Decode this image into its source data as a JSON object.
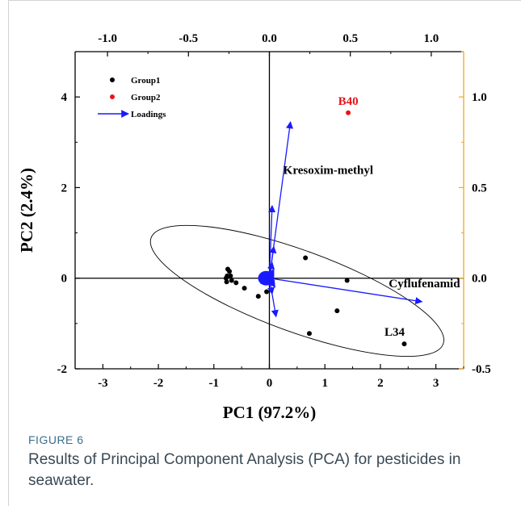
{
  "caption": {
    "label": "FIGURE 6",
    "text": "Results of Principal Component Analysis (PCA) for pesticides in seawater."
  },
  "chart_data": {
    "type": "scatter",
    "xlabel": "PC1 (97.2%)",
    "ylabel": "PC2 (2.4%)",
    "xlim": [
      -3.5,
      3.5
    ],
    "ylim": [
      -2.0,
      5.0
    ],
    "x_ticks": [
      -3,
      -2,
      -1,
      0,
      1,
      2,
      3
    ],
    "y_ticks": [
      -2,
      0,
      2,
      4
    ],
    "top_axis": {
      "lim": [
        -1.2,
        1.2
      ],
      "ticks": [
        -1.0,
        -0.5,
        0.0,
        0.5,
        1.0
      ],
      "tick_labels": [
        "-1.0",
        "-0.5",
        "0.0",
        "0.5",
        "1.0"
      ]
    },
    "right_axis": {
      "lim": [
        -0.5,
        1.25
      ],
      "ticks": [
        -0.5,
        0.0,
        0.5,
        1.0
      ],
      "tick_labels": [
        "-0.5",
        "0.0",
        "0.5",
        "1.0"
      ],
      "color": "#f5a623"
    },
    "legend": {
      "position": "top-left",
      "entries": [
        {
          "label": "Group1",
          "marker": "dot",
          "color": "#000000"
        },
        {
          "label": "Group2",
          "marker": "dot",
          "color": "#e8141b"
        },
        {
          "label": "Loadings",
          "marker": "arrow",
          "color": "#1a1aff"
        }
      ]
    },
    "series": [
      {
        "name": "Group1",
        "color": "#000000",
        "points": [
          [
            -0.75,
            0.2
          ],
          [
            -0.72,
            0.15
          ],
          [
            -0.76,
            0.05
          ],
          [
            -0.78,
            0.0
          ],
          [
            -0.77,
            -0.08
          ],
          [
            -0.7,
            0.05
          ],
          [
            -0.68,
            -0.05
          ],
          [
            -0.6,
            -0.1
          ],
          [
            -0.45,
            -0.22
          ],
          [
            -0.2,
            -0.4
          ],
          [
            -0.05,
            -0.3
          ],
          [
            0.65,
            0.45
          ],
          [
            1.4,
            -0.05
          ],
          [
            1.22,
            -0.72
          ],
          [
            0.72,
            -1.22
          ],
          [
            2.43,
            -1.45
          ]
        ]
      },
      {
        "name": "Group2",
        "color": "#e8141b",
        "points": [
          [
            1.42,
            3.65
          ]
        ]
      }
    ],
    "point_labels": [
      {
        "text": "B40",
        "x": 1.42,
        "y": 3.65,
        "color": "#e8141b"
      },
      {
        "text": "L34",
        "x": 2.43,
        "y": -1.45,
        "color": "#000000"
      }
    ],
    "loadings": [
      {
        "label": "Kresoxim-methyl",
        "x": 0.38,
        "y": 3.45
      },
      {
        "label": "Cyflufenamid",
        "x": 2.75,
        "y": -0.52
      },
      {
        "label": "",
        "x": 0.05,
        "y": 1.6
      },
      {
        "label": "",
        "x": 0.12,
        "y": -0.85
      },
      {
        "label": "",
        "x": 0.08,
        "y": 0.7
      },
      {
        "label": "",
        "x": 0.05,
        "y": 0.35
      },
      {
        "label": "",
        "x": 0.1,
        "y": -0.2
      },
      {
        "label": "",
        "x": -0.18,
        "y": 0.05
      },
      {
        "label": "",
        "x": -0.15,
        "y": -0.12
      },
      {
        "label": "",
        "x": 0.08,
        "y": 0.2
      },
      {
        "label": "",
        "x": 0.05,
        "y": -0.35
      }
    ],
    "loading_label_positions": [
      {
        "text": "Kresoxim-methyl",
        "x": 0.25,
        "y": 2.3
      },
      {
        "text": "Cyflufenamid",
        "x": 2.15,
        "y": -0.2
      }
    ],
    "ellipse": {
      "center": [
        0.5,
        -0.28
      ],
      "semi_axis_pc1": 2.8,
      "semi_axis_pc2": 0.9,
      "angle_deg": -20,
      "color": "#000000"
    },
    "grid": false,
    "reference_lines": {
      "x": 0,
      "y": 0
    }
  }
}
